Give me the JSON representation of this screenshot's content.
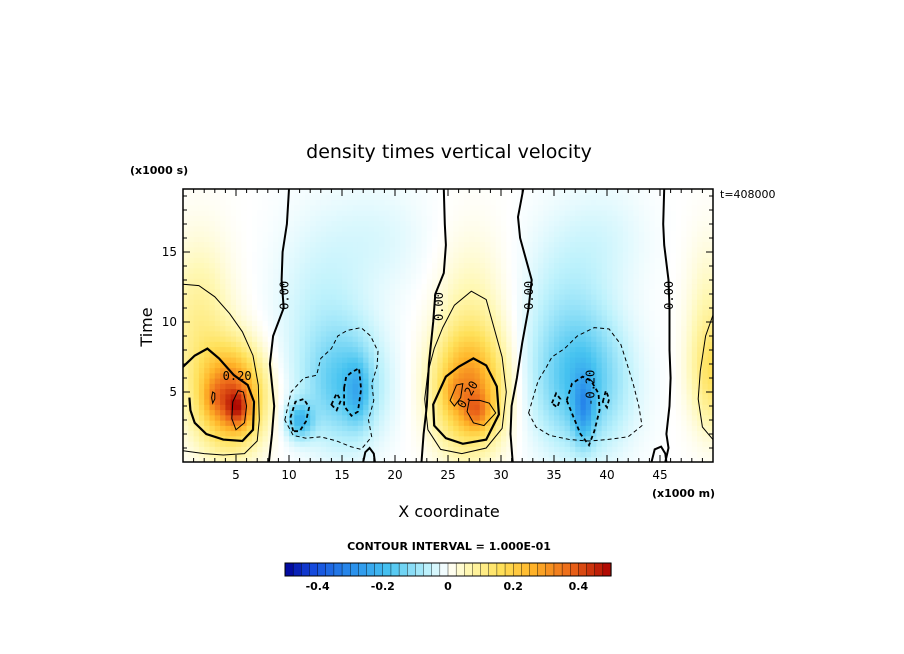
{
  "chart_data": {
    "type": "heatmap",
    "title": "density times vertical velocity",
    "xlabel": "X coordinate",
    "ylabel": "Time",
    "x_unit": "(x1000 m)",
    "y_unit": "(x1000 s)",
    "time_stamp": "t=408000",
    "xlim": [
      0,
      50
    ],
    "ylim": [
      0,
      19.5
    ],
    "x_ticks": [
      "5",
      "10",
      "15",
      "20",
      "25",
      "30",
      "35",
      "40",
      "45"
    ],
    "y_ticks": [
      "5",
      "10",
      "15"
    ],
    "contour_interval": "CONTOUR INTERVAL = 1.000E-01",
    "colorbar": {
      "range": [
        -0.5,
        0.5
      ],
      "ticks": [
        "-0.4",
        "-0.2",
        "0",
        "0.2",
        "0.4"
      ],
      "tick_values": [
        -0.4,
        -0.2,
        0,
        0.2,
        0.4
      ]
    },
    "contour_labels": [
      {
        "text": "0.00",
        "x": 9.6,
        "y": 11.9,
        "rotate": -90
      },
      {
        "text": "0.00",
        "x": 24.2,
        "y": 11.1,
        "rotate": -90
      },
      {
        "text": "0.00",
        "x": 32.7,
        "y": 11.9,
        "rotate": -90
      },
      {
        "text": "0.00",
        "x": 45.9,
        "y": 11.9,
        "rotate": -90
      },
      {
        "text": "0.20",
        "x": 5.1,
        "y": 6.1,
        "rotate": 0
      },
      {
        "text": "0.20",
        "x": 26.9,
        "y": 4.8,
        "rotate": -60
      },
      {
        "text": "-0.20",
        "x": 38.5,
        "y": 5.3,
        "rotate": -90
      }
    ],
    "features": [
      {
        "cx": 4.6,
        "cy": 4.7,
        "rx": 3.6,
        "ry": 4.2,
        "v": 0.38
      },
      {
        "cx": 5.2,
        "cy": 3.8,
        "rx": 1.4,
        "ry": 1.5,
        "v": 0.14
      },
      {
        "cx": 2.8,
        "cy": 4.6,
        "rx": 1.2,
        "ry": 1.6,
        "v": 0.05
      },
      {
        "cx": 1.5,
        "cy": 9.5,
        "rx": 3.8,
        "ry": 7.5,
        "v": 0.1
      },
      {
        "cx": 15.2,
        "cy": 5.5,
        "rx": 4.6,
        "ry": 5.2,
        "v": -0.15
      },
      {
        "cx": 11.0,
        "cy": 3.0,
        "rx": 1.6,
        "ry": 1.6,
        "v": -0.18
      },
      {
        "cx": 16.5,
        "cy": 5.0,
        "rx": 1.4,
        "ry": 2.8,
        "v": -0.1
      },
      {
        "cx": 13.0,
        "cy": 11.0,
        "rx": 5.5,
        "ry": 8.0,
        "v": -0.05
      },
      {
        "cx": 27.0,
        "cy": 5.2,
        "rx": 4.0,
        "ry": 5.0,
        "v": 0.3
      },
      {
        "cx": 27.8,
        "cy": 3.6,
        "rx": 1.7,
        "ry": 1.7,
        "v": 0.13
      },
      {
        "cx": 25.5,
        "cy": 5.0,
        "rx": 1.2,
        "ry": 1.5,
        "v": 0.05
      },
      {
        "cx": 27.2,
        "cy": 10.5,
        "rx": 4.0,
        "ry": 7.0,
        "v": 0.06
      },
      {
        "cx": 37.5,
        "cy": 5.8,
        "rx": 5.4,
        "ry": 6.0,
        "v": -0.18
      },
      {
        "cx": 37.8,
        "cy": 3.8,
        "rx": 1.2,
        "ry": 3.0,
        "v": -0.15
      },
      {
        "cx": 36.0,
        "cy": 12.0,
        "rx": 5.0,
        "ry": 7.0,
        "v": -0.05
      },
      {
        "cx": 18.5,
        "cy": 16.0,
        "rx": 6.0,
        "ry": 5.0,
        "v": -0.03
      },
      {
        "cx": 40.0,
        "cy": 16.0,
        "rx": 5.0,
        "ry": 5.0,
        "v": -0.03
      },
      {
        "cx": 50.0,
        "cy": 6.5,
        "rx": 2.6,
        "ry": 5.0,
        "v": 0.15
      },
      {
        "cx": 49.5,
        "cy": 12.0,
        "rx": 2.5,
        "ry": 6.0,
        "v": 0.04
      }
    ],
    "zero_lines": [
      [
        [
          8.1,
          0
        ],
        [
          8.4,
          2.0
        ],
        [
          8.6,
          4.0
        ],
        [
          8.2,
          7.0
        ],
        [
          8.5,
          9.0
        ],
        [
          9.5,
          11.0
        ],
        [
          9.3,
          13.0
        ],
        [
          9.4,
          15.0
        ],
        [
          9.8,
          17.0
        ],
        [
          10.0,
          19.5
        ]
      ],
      [
        [
          22.5,
          0
        ],
        [
          22.7,
          2.0
        ],
        [
          23.0,
          4.0
        ],
        [
          23.2,
          7.0
        ],
        [
          23.6,
          10.0
        ],
        [
          23.8,
          12.0
        ],
        [
          24.6,
          13.5
        ],
        [
          24.8,
          15.5
        ],
        [
          24.7,
          17.0
        ],
        [
          24.6,
          19.5
        ]
      ],
      [
        [
          31.1,
          0
        ],
        [
          30.9,
          2.0
        ],
        [
          31.0,
          4.0
        ],
        [
          31.5,
          6.0
        ],
        [
          32.0,
          8.5
        ],
        [
          32.6,
          11.0
        ],
        [
          32.9,
          13.0
        ],
        [
          31.8,
          16.0
        ],
        [
          31.6,
          17.5
        ],
        [
          32.1,
          19.5
        ]
      ],
      [
        [
          45.5,
          0
        ],
        [
          45.8,
          1.0
        ],
        [
          45.6,
          2.0
        ],
        [
          45.9,
          4.0
        ],
        [
          46.0,
          6.0
        ],
        [
          45.9,
          8.0
        ],
        [
          45.9,
          11.0
        ],
        [
          45.8,
          13.0
        ],
        [
          45.4,
          15.5
        ],
        [
          45.3,
          17.0
        ],
        [
          45.4,
          19.5
        ]
      ]
    ],
    "positive_contours": [
      {
        "level": 0.1,
        "pts": [
          [
            0,
            12.7
          ],
          [
            1.5,
            12.6
          ],
          [
            3.0,
            11.8
          ],
          [
            4.4,
            10.6
          ],
          [
            5.6,
            9.3
          ],
          [
            6.6,
            7.6
          ],
          [
            7.1,
            5.5
          ],
          [
            7.2,
            3.0
          ],
          [
            7.0,
            1.5
          ],
          [
            5.8,
            0.6
          ],
          [
            3.8,
            0.5
          ],
          [
            2.0,
            0.6
          ],
          [
            0,
            0.8
          ]
        ]
      },
      {
        "level": 0.2,
        "bold": true,
        "pts": [
          [
            0,
            6.8
          ],
          [
            1.1,
            7.6
          ],
          [
            2.3,
            8.1
          ],
          [
            3.4,
            7.4
          ],
          [
            4.8,
            6.2
          ],
          [
            6.1,
            5.5
          ],
          [
            6.7,
            4.3
          ],
          [
            6.6,
            2.3
          ],
          [
            5.6,
            1.5
          ],
          [
            3.8,
            1.6
          ],
          [
            2.2,
            2.0
          ],
          [
            1.1,
            2.8
          ],
          [
            0.7,
            3.7
          ],
          [
            0.6,
            4.6
          ]
        ]
      },
      {
        "level": 0.3,
        "pts": [
          [
            5.0,
            2.3
          ],
          [
            5.8,
            2.8
          ],
          [
            6.0,
            4.0
          ],
          [
            5.7,
            5.0
          ],
          [
            5.2,
            5.1
          ],
          [
            4.7,
            4.3
          ],
          [
            4.6,
            3.1
          ]
        ]
      },
      {
        "level": 0.3,
        "pts": [
          [
            2.8,
            4.2
          ],
          [
            3.0,
            4.5
          ],
          [
            3.0,
            4.9
          ],
          [
            2.8,
            5.0
          ],
          [
            2.7,
            4.6
          ]
        ]
      },
      {
        "level": 0.1,
        "pts": [
          [
            27.2,
            12.2
          ],
          [
            28.6,
            11.6
          ],
          [
            29.3,
            9.7
          ],
          [
            30.1,
            7.5
          ],
          [
            30.5,
            5.0
          ],
          [
            30.1,
            2.4
          ],
          [
            28.6,
            1.0
          ],
          [
            26.3,
            0.6
          ],
          [
            24.3,
            0.9
          ],
          [
            23.1,
            2.3
          ],
          [
            22.8,
            4.5
          ],
          [
            23.1,
            6.4
          ],
          [
            23.7,
            8.1
          ],
          [
            24.5,
            9.6
          ],
          [
            25.6,
            11.2
          ]
        ]
      },
      {
        "level": 0.2,
        "bold": true,
        "pts": [
          [
            24.8,
            6.1
          ],
          [
            26.0,
            6.8
          ],
          [
            27.4,
            7.4
          ],
          [
            28.6,
            6.9
          ],
          [
            29.6,
            5.4
          ],
          [
            29.8,
            3.4
          ],
          [
            28.6,
            1.6
          ],
          [
            26.4,
            1.3
          ],
          [
            24.8,
            1.7
          ],
          [
            23.7,
            2.6
          ],
          [
            23.6,
            4.1
          ],
          [
            24.2,
            5.1
          ]
        ]
      },
      {
        "level": 0.3,
        "pts": [
          [
            27.0,
            4.4
          ],
          [
            28.0,
            4.4
          ],
          [
            28.9,
            4.2
          ],
          [
            29.5,
            3.5
          ],
          [
            28.4,
            2.6
          ],
          [
            27.4,
            2.8
          ],
          [
            26.8,
            3.6
          ]
        ]
      },
      {
        "level": 0.3,
        "pts": [
          [
            25.2,
            4.4
          ],
          [
            25.8,
            5.5
          ],
          [
            26.4,
            5.6
          ],
          [
            26.2,
            4.6
          ],
          [
            25.6,
            4.0
          ]
        ]
      },
      {
        "level": 0.1,
        "pts": [
          [
            50,
            10.5
          ],
          [
            49.3,
            9.0
          ],
          [
            48.8,
            6.5
          ],
          [
            48.6,
            4.5
          ],
          [
            49.0,
            2.5
          ],
          [
            50,
            1.6
          ]
        ]
      }
    ],
    "negative_contours": [
      {
        "level": -0.1,
        "pts": [
          [
            9.6,
            3.0
          ],
          [
            10.2,
            5.0
          ],
          [
            11.4,
            6.0
          ],
          [
            12.6,
            6.2
          ],
          [
            13.0,
            7.4
          ],
          [
            14.0,
            8.1
          ],
          [
            14.6,
            9.0
          ],
          [
            15.5,
            9.4
          ],
          [
            16.8,
            9.6
          ],
          [
            17.7,
            9.0
          ],
          [
            18.4,
            7.9
          ],
          [
            18.3,
            6.8
          ],
          [
            17.8,
            5.6
          ],
          [
            18.0,
            4.4
          ],
          [
            17.5,
            3.0
          ],
          [
            17.8,
            1.8
          ],
          [
            16.8,
            0.9
          ],
          [
            15.8,
            1.1
          ],
          [
            14.5,
            1.5
          ],
          [
            13.0,
            1.8
          ],
          [
            11.6,
            1.7
          ],
          [
            10.4,
            1.9
          ]
        ]
      },
      {
        "level": -0.2,
        "pts": [
          [
            10.4,
            2.2
          ],
          [
            10.1,
            3.1
          ],
          [
            10.6,
            4.3
          ],
          [
            11.4,
            4.5
          ],
          [
            11.9,
            3.9
          ],
          [
            11.6,
            2.9
          ],
          [
            11.0,
            2.2
          ]
        ]
      },
      {
        "level": -0.2,
        "pts": [
          [
            15.2,
            5.3
          ],
          [
            15.4,
            6.1
          ],
          [
            15.9,
            6.4
          ],
          [
            16.6,
            6.7
          ],
          [
            16.8,
            5.2
          ],
          [
            16.5,
            3.6
          ],
          [
            15.9,
            3.3
          ],
          [
            15.2,
            4.0
          ]
        ]
      },
      {
        "level": -0.2,
        "pts": [
          [
            14.0,
            4.1
          ],
          [
            14.5,
            4.9
          ],
          [
            14.9,
            4.4
          ],
          [
            14.5,
            3.7
          ]
        ]
      },
      {
        "level": -0.1,
        "pts": [
          [
            32.6,
            3.5
          ],
          [
            33.5,
            5.8
          ],
          [
            34.3,
            6.8
          ],
          [
            34.8,
            7.5
          ],
          [
            36.0,
            8.1
          ],
          [
            37.2,
            9.0
          ],
          [
            38.8,
            9.6
          ],
          [
            40.2,
            9.5
          ],
          [
            41.3,
            8.4
          ],
          [
            41.9,
            7.0
          ],
          [
            42.5,
            5.5
          ],
          [
            43.0,
            4.0
          ],
          [
            43.3,
            2.6
          ],
          [
            42.0,
            1.8
          ],
          [
            40.0,
            1.6
          ],
          [
            38.3,
            1.5
          ],
          [
            36.5,
            1.6
          ],
          [
            34.6,
            1.9
          ],
          [
            33.3,
            2.5
          ]
        ]
      },
      {
        "level": -0.2,
        "pts": [
          [
            36.2,
            4.4
          ],
          [
            36.7,
            5.6
          ],
          [
            37.7,
            6.1
          ],
          [
            38.5,
            5.8
          ],
          [
            39.2,
            4.9
          ],
          [
            39.3,
            3.7
          ],
          [
            38.8,
            2.2
          ],
          [
            38.3,
            1.2
          ],
          [
            37.5,
            2.0
          ],
          [
            36.9,
            3.1
          ]
        ]
      },
      {
        "level": -0.2,
        "pts": [
          [
            34.8,
            4.2
          ],
          [
            35.2,
            4.9
          ],
          [
            35.6,
            4.5
          ],
          [
            35.3,
            3.9
          ]
        ]
      },
      {
        "level": -0.2,
        "pts": [
          [
            39.6,
            4.3
          ],
          [
            39.9,
            5.1
          ],
          [
            40.2,
            4.5
          ],
          [
            40.0,
            3.9
          ]
        ]
      }
    ],
    "zero_bumps": [
      [
        [
          17.0,
          0
        ],
        [
          17.2,
          0.7
        ],
        [
          17.6,
          1.0
        ],
        [
          18.0,
          0.6
        ],
        [
          18.1,
          0
        ]
      ],
      [
        [
          44.2,
          0
        ],
        [
          44.5,
          0.9
        ],
        [
          45.1,
          1.1
        ],
        [
          45.5,
          0.6
        ],
        [
          45.6,
          0
        ]
      ]
    ]
  }
}
